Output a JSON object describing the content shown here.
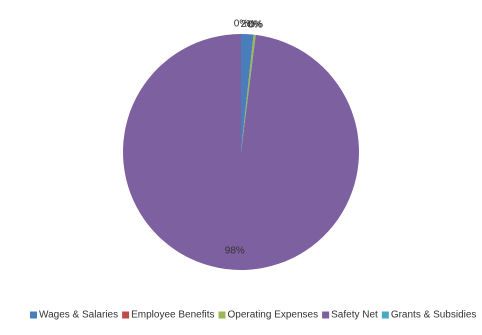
{
  "chart_data": {
    "type": "pie",
    "categories": [
      "Wages & Salaries",
      "Employee Benefits",
      "Operating Expenses",
      "Safety Net",
      "Grants & Subsidies"
    ],
    "values": [
      1.7,
      0,
      0.3,
      98,
      0
    ],
    "value_labels": [
      "2%",
      "0%",
      "0%",
      "98%",
      "0%"
    ],
    "colors": [
      "#4a7ebb",
      "#be4b48",
      "#98b954",
      "#7d60a0",
      "#46aac5"
    ],
    "legend": "bottom"
  }
}
